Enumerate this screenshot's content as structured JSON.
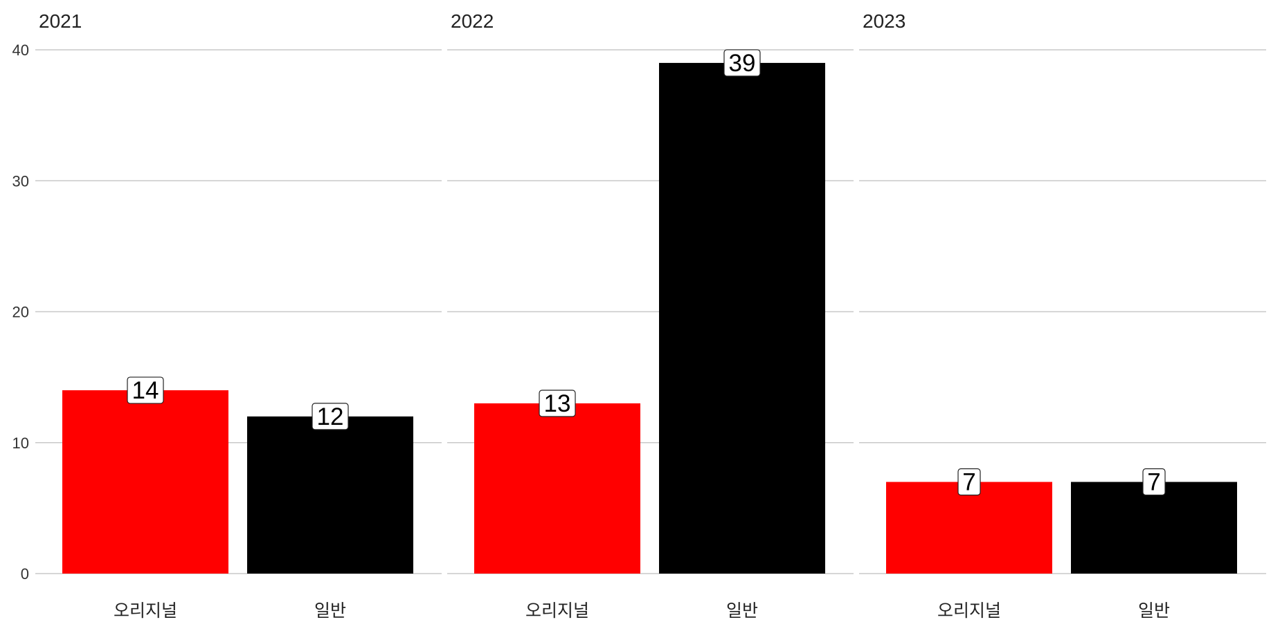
{
  "chart_data": {
    "type": "bar",
    "facets": [
      "2021",
      "2022",
      "2023"
    ],
    "categories": [
      "오리지널",
      "일반"
    ],
    "colors": {
      "오리지널": "#ff0000",
      "일반": "#000000"
    },
    "panels": [
      {
        "title": "2021",
        "values": [
          14,
          12
        ]
      },
      {
        "title": "2022",
        "values": [
          13,
          39
        ]
      },
      {
        "title": "2023",
        "values": [
          7,
          7
        ]
      }
    ],
    "ylim": [
      0,
      40
    ],
    "yticks": [
      0,
      10,
      20,
      30,
      40
    ],
    "grid": true,
    "data_labels": true,
    "legend": "none"
  }
}
